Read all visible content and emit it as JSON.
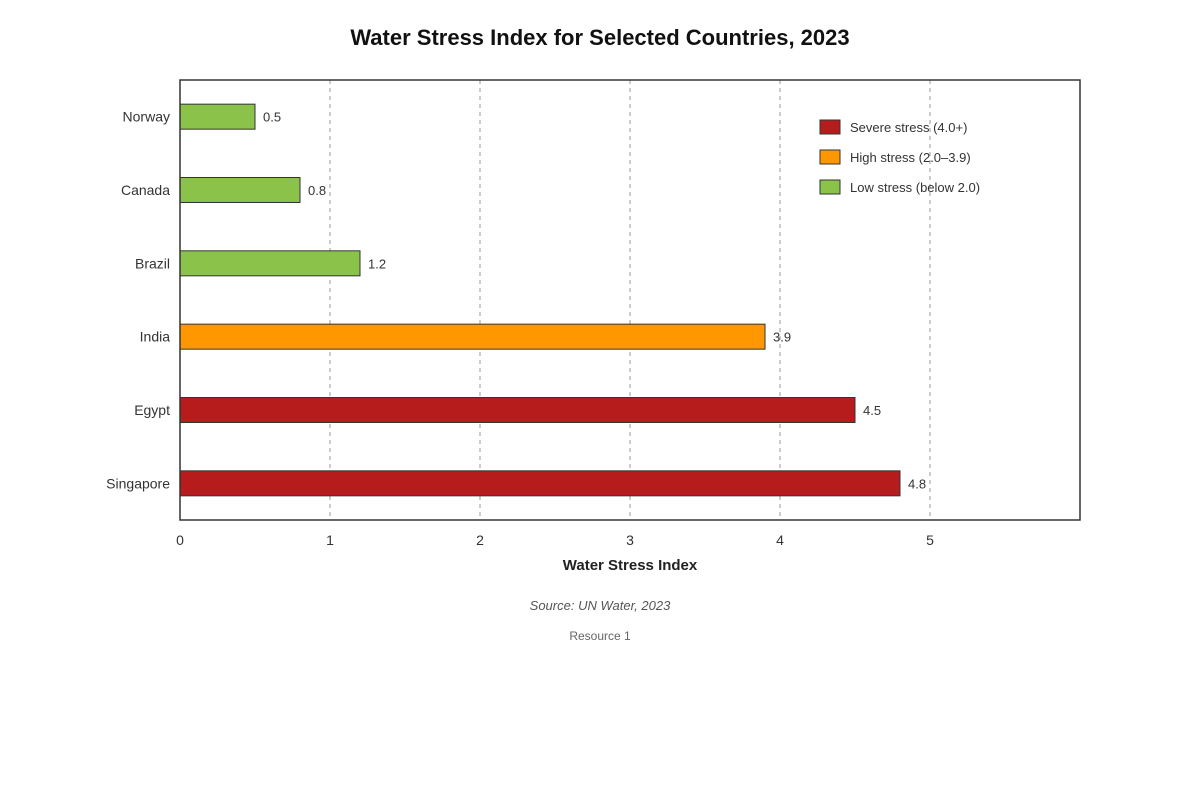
{
  "chart_data": {
    "type": "bar",
    "orientation": "horizontal",
    "title": "Water Stress Index for Selected Countries, 2023",
    "xlabel": "Water Stress Index",
    "ylabel": "",
    "categories": [
      "Norway",
      "Canada",
      "Brazil",
      "India",
      "Egypt",
      "Singapore"
    ],
    "values": [
      0.5,
      0.8,
      1.2,
      3.9,
      4.5,
      4.8
    ],
    "data_labels": [
      "0.5",
      "0.8",
      "1.2",
      "3.9",
      "4.5",
      "4.8"
    ],
    "classes": [
      "low",
      "low",
      "low",
      "high",
      "severe",
      "severe"
    ],
    "xlim": [
      0,
      6
    ],
    "xticks": [
      0,
      1,
      2,
      3,
      4,
      5
    ],
    "xtick_labels": [
      "0",
      "1",
      "2",
      "3",
      "4",
      "5"
    ],
    "grid": "vertical dashed",
    "legend_position": "top-right",
    "legend": [
      {
        "key": "severe",
        "label": "Severe stress (4.0+)",
        "color": "#b71c1c"
      },
      {
        "key": "high",
        "label": "High stress (2.0–3.9)",
        "color": "#ff9800"
      },
      {
        "key": "low",
        "label": "Low stress (below 2.0)",
        "color": "#8bc34a"
      }
    ],
    "source": "Source: UN Water, 2023",
    "footer": "Resource 1"
  }
}
